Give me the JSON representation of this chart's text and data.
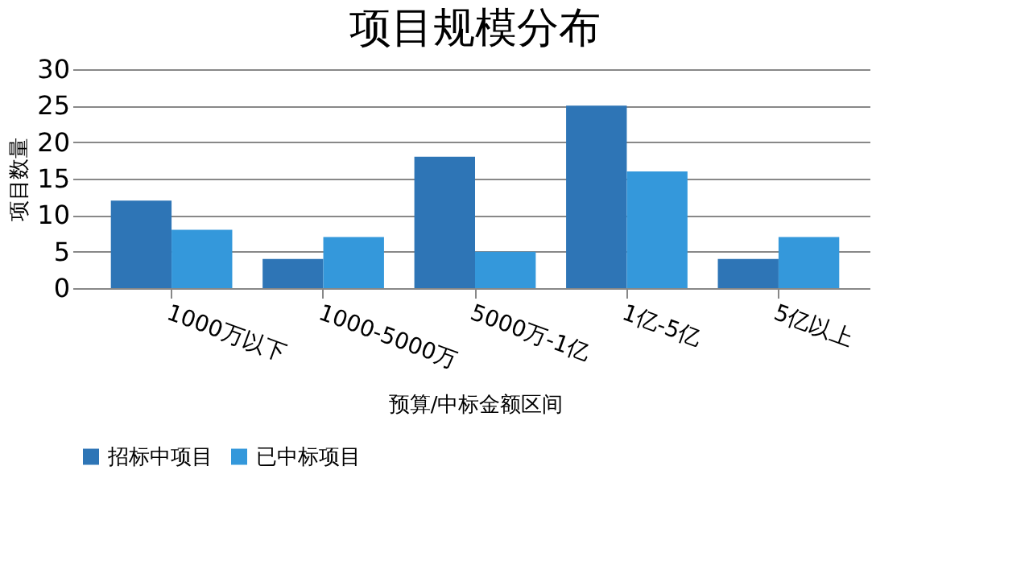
{
  "chart_data": {
    "type": "bar",
    "title": "项目规模分布",
    "xlabel": "预算/中标金额区间",
    "ylabel": "项目数量",
    "categories": [
      "1000万以下",
      "1000-5000万",
      "5000万-1亿",
      "1亿-5亿",
      "5亿以上"
    ],
    "series": [
      {
        "name": "招标中项目",
        "color": "#2e75b6",
        "values": [
          12,
          4,
          18,
          25,
          4
        ]
      },
      {
        "name": "已中标项目",
        "color": "#3498db",
        "values": [
          8,
          7,
          5,
          16,
          7
        ]
      }
    ],
    "ylim": [
      0,
      30
    ],
    "yticks": [
      0,
      5,
      10,
      15,
      20,
      25,
      30
    ],
    "grid": "y",
    "legend": "bottom"
  }
}
